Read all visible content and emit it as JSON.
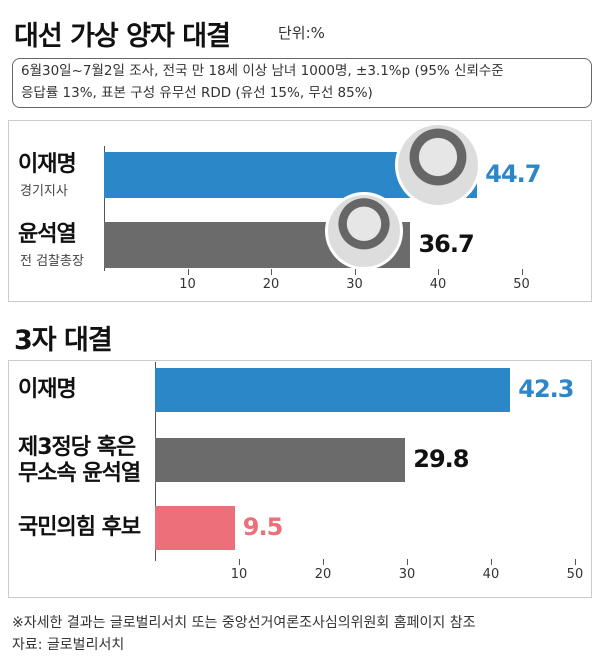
{
  "header": {
    "note": [
      "6월30일~7월2일 조사, 전국 만 18세 이상 남녀 1000명, ±3.1%p (95% 신뢰수준",
      "응답률 13%, 표본 구성 유무선 RDD (유선 15%, 무선 85%)"
    ]
  },
  "chart_data": [
    {
      "type": "bar",
      "orientation": "horizontal",
      "title": "대선 가상 양자 대결",
      "unit": "단위:%",
      "categories": [
        "이재명",
        "윤석열"
      ],
      "sublabels": [
        "경기지사",
        "전 검찰총장"
      ],
      "values": [
        44.7,
        36.7
      ],
      "colors": [
        "#2b87c8",
        "#6b6b6b"
      ],
      "label_colors": [
        "#2b87c8",
        "#111111"
      ],
      "xlim": [
        0,
        57
      ],
      "xticks": [
        10,
        20,
        30,
        40,
        50
      ]
    },
    {
      "type": "bar",
      "orientation": "horizontal",
      "title": "3자 대결",
      "categories": [
        "이재명",
        "제3정당 혹은 무소속 윤석열",
        "국민의힘 후보"
      ],
      "values": [
        42.3,
        29.8,
        9.5
      ],
      "colors": [
        "#2b87c8",
        "#6b6b6b",
        "#ec6f79"
      ],
      "label_colors": [
        "#2b87c8",
        "#111111",
        "#ec6f79"
      ],
      "xlim": [
        0,
        50.6
      ],
      "xticks": [
        10,
        20,
        30,
        40,
        50
      ]
    }
  ],
  "footer": [
    "※자세한 결과는 글로벌리서치 또는 중앙선거여론조사심의위원회 홈페이지 참조",
    "자료: 글로벌리서치"
  ]
}
